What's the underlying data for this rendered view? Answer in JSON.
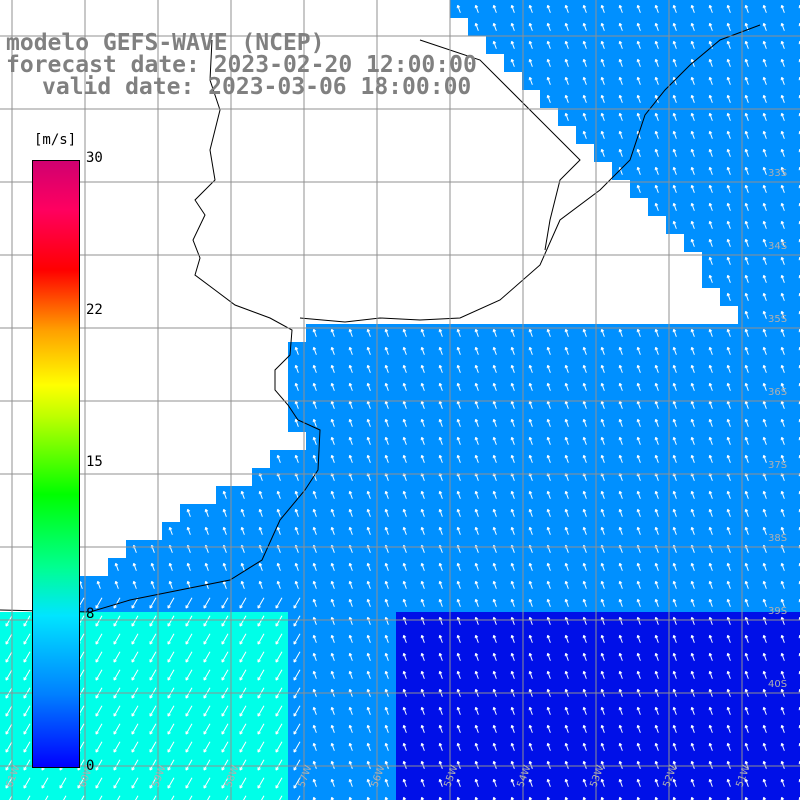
{
  "title": {
    "line1": "modelo GEFS-WAVE (NCEP)",
    "line2": "forecast date: 2023-02-20 12:00:00",
    "line3": "valid date: 2023-03-06 18:00:00"
  },
  "colorbar": {
    "unit": "[m/s]",
    "ticks": [
      {
        "label": "30",
        "value": 30
      },
      {
        "label": "22",
        "value": 22
      },
      {
        "label": "15",
        "value": 15
      },
      {
        "label": "8",
        "value": 8
      },
      {
        "label": "0",
        "value": 0
      }
    ]
  },
  "grid": {
    "lon_labels": [
      "61W",
      "60W",
      "59W",
      "58W",
      "57W",
      "56W",
      "55W",
      "54W",
      "53W",
      "52W",
      "51W",
      "50W"
    ],
    "lat_labels": [
      "33S",
      "34S",
      "35S",
      "36S",
      "37S",
      "38S",
      "39S",
      "40S"
    ]
  },
  "colors": {
    "ocean_low": "#0010e8",
    "ocean_mid": "#0090ff",
    "ocean_high": "#00ffe8",
    "land": "#ffffff",
    "coastline": "#000000",
    "grid": "#909090",
    "arrow": "#ffffff"
  }
}
